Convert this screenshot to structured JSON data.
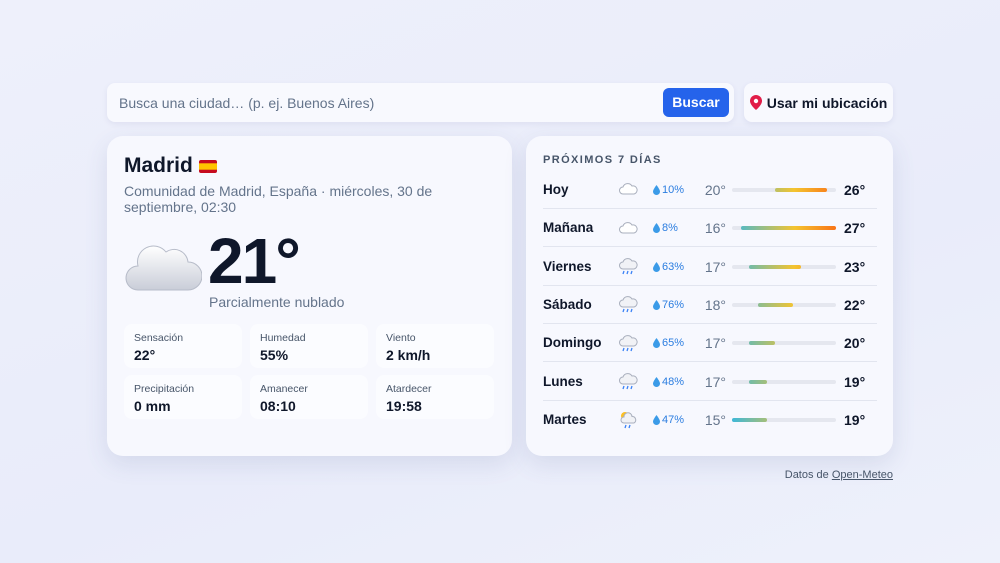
{
  "search": {
    "placeholder": "Busca una ciudad… (p. ej. Buenos Aires)",
    "button": "Buscar",
    "location_button": "Usar mi ubicación"
  },
  "current": {
    "city": "Madrid",
    "location": "Comunidad de Madrid, España · miércoles, 30 de septiembre, 02:30",
    "temperature": "21°",
    "condition": "Parcialmente nublado",
    "stats": [
      {
        "label": "Sensación",
        "value": "22°"
      },
      {
        "label": "Humedad",
        "value": "55%"
      },
      {
        "label": "Viento",
        "value": "2 km/h"
      },
      {
        "label": "Precipitación",
        "value": "0 mm"
      },
      {
        "label": "Amanecer",
        "value": "08:10"
      },
      {
        "label": "Atardecer",
        "value": "19:58"
      }
    ]
  },
  "forecast": {
    "title": "PRÓXIMOS 7 DÍAS",
    "days": [
      {
        "day": "Hoy",
        "precipitation": "10%",
        "low": {
          "value": 20,
          "label": "20°"
        },
        "high": {
          "value": 26,
          "label": "26°"
        }
      },
      {
        "day": "Mañana",
        "precipitation": "8%",
        "low": {
          "value": 16,
          "label": "16°"
        },
        "high": {
          "value": 27,
          "label": "27°"
        }
      },
      {
        "day": "Viernes",
        "precipitation": "63%",
        "low": {
          "value": 17,
          "label": "17°"
        },
        "high": {
          "value": 23,
          "label": "23°"
        }
      },
      {
        "day": "Sábado",
        "precipitation": "76%",
        "low": {
          "value": 18,
          "label": "18°"
        },
        "high": {
          "value": 22,
          "label": "22°"
        }
      },
      {
        "day": "Domingo",
        "precipitation": "65%",
        "low": {
          "value": 17,
          "label": "17°"
        },
        "high": {
          "value": 20,
          "label": "20°"
        }
      },
      {
        "day": "Lunes",
        "precipitation": "48%",
        "low": {
          "value": 17,
          "label": "17°"
        },
        "high": {
          "value": 19,
          "label": "19°"
        }
      },
      {
        "day": "Martes",
        "precipitation": "47%",
        "low": {
          "value": 15,
          "label": "15°"
        },
        "high": {
          "value": 19,
          "label": "19°"
        }
      }
    ]
  },
  "footer": {
    "text": "Datos de",
    "link": "Open-Meteo"
  }
}
